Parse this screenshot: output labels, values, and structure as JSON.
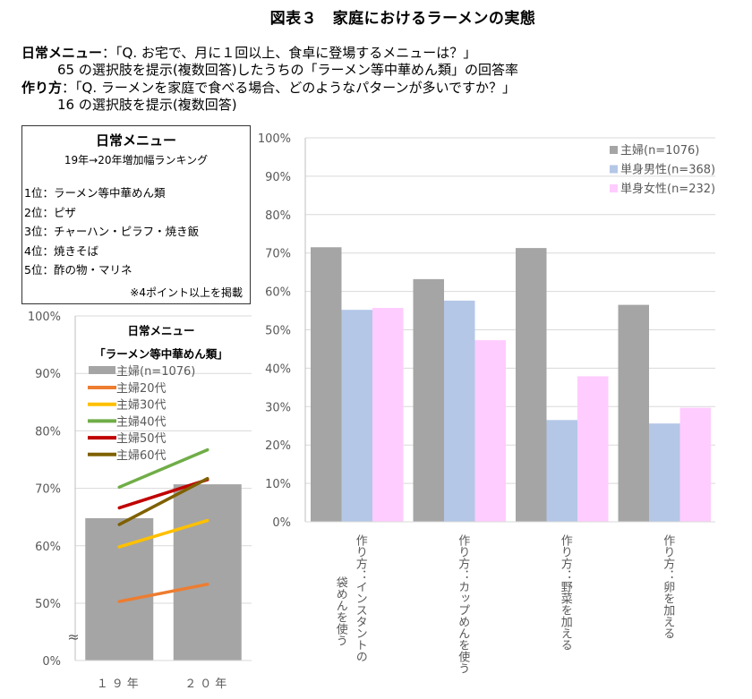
{
  "title": "図表３　家庭におけるラーメンの実態",
  "description": {
    "line1_label": "日常メニュー",
    "line1_text": "：「Q. お宅で、月に１回以上、食卓に登場するメニューは？」",
    "line2_text": "65 の選択肢を提示(複数回答)したうちの「ラーメン等中華めん類」の回答率",
    "line3_label": "作り方",
    "line3_text": "：「Q. ラーメンを家庭で食べる場合、どのようなパターンが多いですか？」",
    "line4_text": "16 の選択肢を提示(複数回答)"
  },
  "ranking": {
    "title": "日常メニュー",
    "subtitle": "19年→20年増加幅ランキング",
    "items": [
      "1位：ラーメン等中華めん類",
      "2位：ピザ",
      "3位：チャーハン・ピラフ・焼き飯",
      "4位：焼きそば",
      "5位：酢の物・マリネ"
    ],
    "note": "※4ポイント以上を掲載"
  },
  "chart_data": [
    {
      "type": "bar",
      "title": "日常メニュー「ラーメン等中華めん類」",
      "title_line1": "日常メニュー",
      "title_line2": "「ラーメン等中華めん類」",
      "categories": [
        "１９年",
        "２０年"
      ],
      "yticks": [
        "0%",
        "50%",
        "60%",
        "70%",
        "80%",
        "90%",
        "100%"
      ],
      "ylim": [
        0,
        100
      ],
      "axis_break": "≈",
      "axis_break_range": [
        0,
        45
      ],
      "grid": true,
      "legend_position": "top-left",
      "bar_series": {
        "name": "主婦(n=1076)",
        "color": "#a5a5a5",
        "values": [
          64.8,
          70.7
        ]
      },
      "line_series": [
        {
          "name": "主婦20代",
          "color": "#ed7d31",
          "values": [
            50.3,
            53.3
          ]
        },
        {
          "name": "主婦30代",
          "color": "#ffc000",
          "values": [
            59.8,
            64.4
          ]
        },
        {
          "name": "主婦40代",
          "color": "#70ad47",
          "values": [
            70.2,
            76.7
          ]
        },
        {
          "name": "主婦50代",
          "color": "#c00000",
          "values": [
            66.6,
            71.5
          ]
        },
        {
          "name": "主婦60代",
          "color": "#7f6000",
          "values": [
            63.7,
            71.7
          ]
        }
      ]
    },
    {
      "type": "bar",
      "title": "",
      "categories": [
        [
          "作り方：インスタントの",
          "袋めんを使う"
        ],
        [
          "作り方：カップめんを使う"
        ],
        [
          "作り方：野菜を加える"
        ],
        [
          "作り方：卵を加える"
        ]
      ],
      "yticks": [
        "0%",
        "10%",
        "20%",
        "30%",
        "40%",
        "50%",
        "60%",
        "70%",
        "80%",
        "90%",
        "100%"
      ],
      "ylim": [
        0,
        100
      ],
      "grid": true,
      "legend_position": "top-right",
      "series": [
        {
          "name": "主婦(n=1076)",
          "color": "#a5a5a5",
          "values": [
            71.5,
            63.2,
            71.3,
            56.5
          ]
        },
        {
          "name": "単身男性(n=368)",
          "color": "#b4c7e7",
          "values": [
            55.2,
            57.6,
            26.5,
            25.6
          ]
        },
        {
          "name": "単身女性(n=232)",
          "color": "#ffccff",
          "values": [
            55.7,
            47.3,
            37.9,
            29.7
          ]
        }
      ]
    }
  ]
}
